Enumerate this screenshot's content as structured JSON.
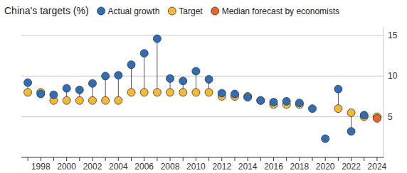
{
  "chart_data": {
    "type": "scatter",
    "title": "China's targets (%)",
    "categories": [
      null,
      "1998",
      null,
      "2000",
      null,
      "2002",
      null,
      "2004",
      null,
      "2006",
      null,
      "2008",
      null,
      "2010",
      null,
      "2012",
      null,
      "2014",
      null,
      "2016",
      null,
      "2018",
      null,
      "2020",
      null,
      "2022",
      null,
      "2024"
    ],
    "series": [
      {
        "name": "Actual growth",
        "color": "#2f6db5",
        "marker": "circle",
        "values": [
          9.2,
          7.8,
          7.7,
          8.5,
          8.3,
          9.1,
          10.0,
          10.1,
          11.4,
          12.8,
          14.6,
          9.7,
          9.4,
          10.6,
          9.6,
          7.9,
          7.8,
          7.4,
          7.0,
          6.8,
          6.9,
          6.7,
          6.0,
          2.3,
          8.4,
          3.2,
          5.2,
          null
        ]
      },
      {
        "name": "Target",
        "color": "#f5b935",
        "marker": "circle",
        "values": [
          8,
          8,
          7,
          7,
          7,
          7,
          7,
          7,
          8,
          8,
          8,
          8,
          8,
          8,
          8,
          7.5,
          7.5,
          7.5,
          7,
          6.5,
          6.5,
          6.5,
          null,
          null,
          6,
          5.5,
          5,
          5
        ]
      },
      {
        "name": "Median forecast by economists",
        "color": "#e8662b",
        "marker": "circle",
        "values": [
          null,
          null,
          null,
          null,
          null,
          null,
          null,
          null,
          null,
          null,
          null,
          null,
          null,
          null,
          null,
          null,
          null,
          null,
          null,
          null,
          null,
          null,
          null,
          null,
          null,
          null,
          null,
          4.8
        ]
      }
    ],
    "ylim": [
      0,
      16
    ],
    "yticks": [
      5,
      10,
      15
    ],
    "grid": true,
    "legend": "top"
  }
}
